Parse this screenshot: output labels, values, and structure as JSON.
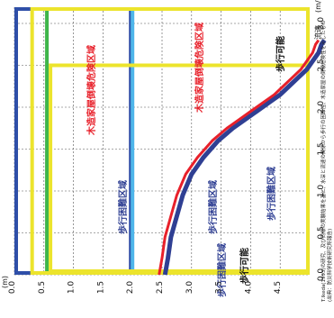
{
  "chart_data": {
    "type": "line",
    "orientation": "rotated-90-ccw",
    "x_axis": {
      "label": "流速",
      "unit": "(m/s)",
      "ticks": [
        "0.0",
        "0.5",
        "1.0",
        "1.5",
        "2.0",
        "2.5",
        "3.0"
      ],
      "range": [
        0,
        3.0
      ]
    },
    "y_axis": {
      "label": "浸水深",
      "unit": "(m)",
      "ticks": [
        "0.0",
        "0.5",
        "1.0",
        "1.5",
        "2.0",
        "2.5",
        "3.0",
        "3.5",
        "4.0",
        "4.5"
      ],
      "range": [
        0,
        5.0
      ]
    },
    "series": [
      {
        "color": "#2f3f93",
        "x": [
          0.0,
          0.2,
          0.45,
          0.7,
          0.95,
          1.2,
          1.4,
          1.6,
          1.75,
          1.85,
          1.95,
          2.05,
          2.15,
          2.25,
          2.35,
          2.45,
          2.55,
          2.65,
          2.75,
          2.8
        ],
        "y": [
          2.55,
          2.6,
          2.65,
          2.75,
          2.85,
          3.0,
          3.2,
          3.45,
          3.7,
          3.9,
          4.1,
          4.3,
          4.5,
          4.65,
          4.8,
          4.95,
          5.05,
          5.15,
          5.2,
          5.25
        ]
      },
      {
        "color": "#e8202a",
        "x": [
          0.0,
          0.2,
          0.45,
          0.7,
          0.95,
          1.2,
          1.4,
          1.6,
          1.75,
          1.85,
          1.95,
          2.05,
          2.15,
          2.25,
          2.35,
          2.45,
          2.55,
          2.65,
          2.75,
          2.8
        ],
        "y": [
          2.45,
          2.5,
          2.55,
          2.65,
          2.75,
          2.9,
          3.1,
          3.35,
          3.6,
          3.8,
          4.0,
          4.2,
          4.4,
          4.55,
          4.7,
          4.85,
          4.95,
          5.05,
          5.1,
          5.15
        ]
      }
    ],
    "zones": [
      {
        "label": "木造家屋倒壊危険区域",
        "color": "#e8202a"
      },
      {
        "label": "木造家屋倒壊危険区域",
        "color": "#e8202a"
      },
      {
        "label": "歩行困難区域",
        "color": "#2f3f93"
      },
      {
        "label": "歩行困難区域",
        "color": "#2f3f93"
      },
      {
        "label": "歩行困難区域",
        "color": "#2f3f93"
      },
      {
        "label": "歩行困難区域",
        "color": "#2f3f93"
      },
      {
        "label": "歩行可能",
        "color": "#111111"
      },
      {
        "label": "歩行可能",
        "color": "#111111"
      }
    ],
    "zone_borders": {
      "outer": "#2f4fa8",
      "cyan": "#4fb6ea",
      "green": "#3fb54a",
      "yellow": "#ece42c"
    },
    "footnote_lines": [
      "T.Ikeda(1993)の研究、及び同様の実験結果を基に、水深と流速の関係から歩行の困難性、木造家屋の倒壊危険性を示したもの",
      "(出典：防災科学技術研究所報告)"
    ],
    "grid": true
  }
}
